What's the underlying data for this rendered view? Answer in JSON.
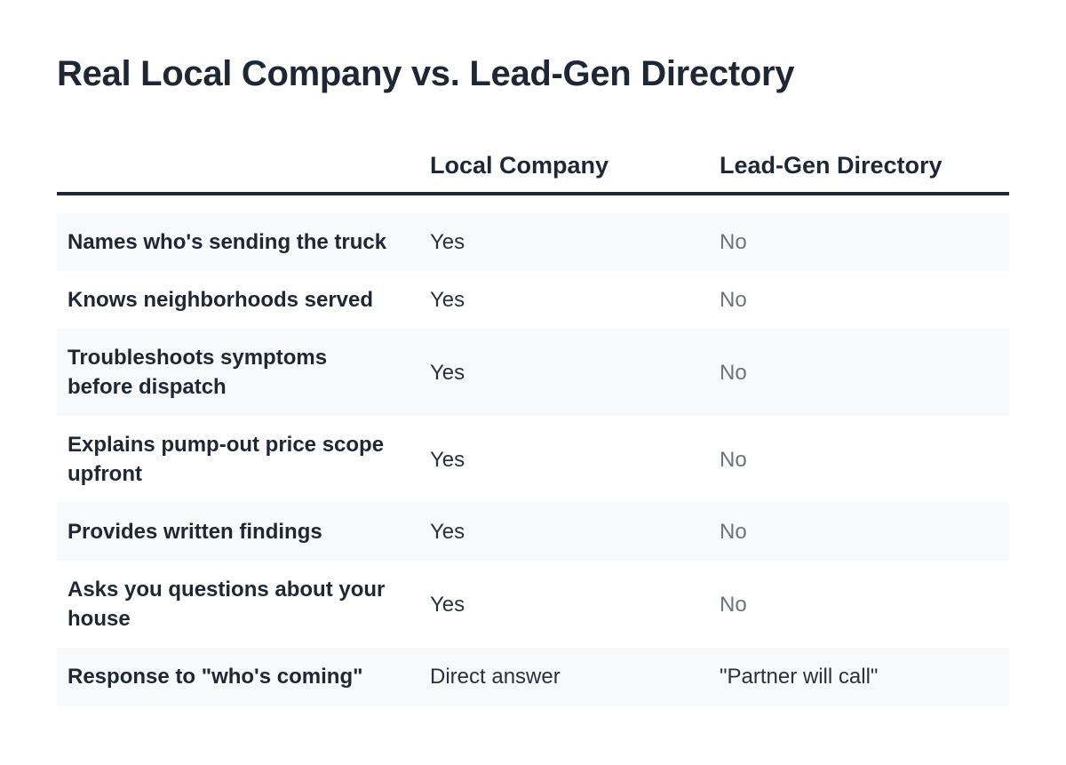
{
  "title": "Real Local Company vs. Lead-Gen Directory",
  "columns": [
    "",
    "Local Company",
    "Lead-Gen Directory"
  ],
  "rows": [
    {
      "feature": "Names who's sending the truck",
      "local": "Yes",
      "directory": "No"
    },
    {
      "feature": "Knows neighborhoods served",
      "local": "Yes",
      "directory": "No"
    },
    {
      "feature": "Troubleshoots symptoms before dispatch",
      "local": "Yes",
      "directory": "No"
    },
    {
      "feature": "Explains pump-out price scope upfront",
      "local": "Yes",
      "directory": "No"
    },
    {
      "feature": "Provides written findings",
      "local": "Yes",
      "directory": "No"
    },
    {
      "feature": "Asks you questions about your house",
      "local": "Yes",
      "directory": "No"
    },
    {
      "feature": "Response to \"who's coming\"",
      "local": "Direct answer",
      "directory": "\"Partner will call\""
    }
  ],
  "colors": {
    "text": "#1e2733",
    "muted": "#6b7280",
    "stripe": "#f7f9fb",
    "rule": "#1e2733"
  }
}
